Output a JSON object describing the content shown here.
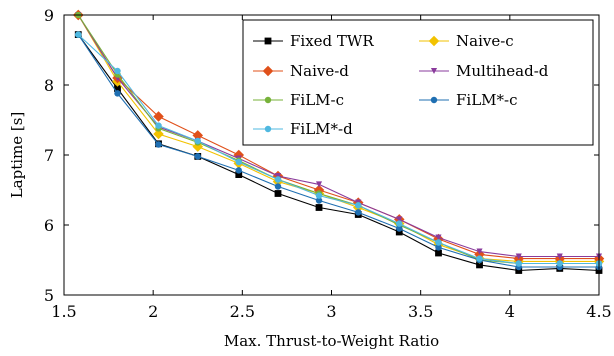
{
  "chart_data": {
    "type": "line",
    "title": "",
    "xlabel": "Max. Thrust-to-Weight Ratio",
    "ylabel": "Laptime [s]",
    "xlim": [
      1.5,
      4.5
    ],
    "ylim": [
      5,
      9
    ],
    "xticks": [
      1.5,
      2,
      2.5,
      3,
      3.5,
      4,
      4.5
    ],
    "xtick_labels": [
      "1.5",
      "2",
      "2.5",
      "3",
      "3.5",
      "4",
      "4.5"
    ],
    "yticks": [
      5,
      6,
      7,
      8,
      9
    ],
    "ytick_labels": [
      "5",
      "6",
      "7",
      "8",
      "9"
    ],
    "grid": false,
    "legend_position": "top-right",
    "x": [
      1.58,
      1.8,
      2.03,
      2.25,
      2.48,
      2.7,
      2.93,
      3.15,
      3.38,
      3.6,
      3.83,
      4.05,
      4.28,
      4.5
    ],
    "series": [
      {
        "name": "Fixed TWR",
        "color": "#000000",
        "marker": "square",
        "values": [
          8.72,
          7.95,
          7.16,
          6.98,
          6.72,
          6.45,
          6.25,
          6.15,
          5.9,
          5.6,
          5.43,
          5.35,
          5.38,
          5.35
        ]
      },
      {
        "name": "Naive-c",
        "color": "#f2c200",
        "marker": "diamond",
        "values": [
          9.0,
          8.05,
          7.3,
          7.12,
          6.88,
          6.62,
          6.45,
          6.25,
          6.02,
          5.72,
          5.52,
          5.48,
          5.48,
          5.48
        ]
      },
      {
        "name": "Naive-d",
        "color": "#e0501a",
        "marker": "diamond",
        "values": [
          9.0,
          8.1,
          7.55,
          7.28,
          7.0,
          6.7,
          6.5,
          6.32,
          6.08,
          5.8,
          5.58,
          5.52,
          5.52,
          5.52
        ]
      },
      {
        "name": "Multihead-d",
        "color": "#8a3b9c",
        "marker": "triangle",
        "values": [
          9.0,
          8.1,
          7.4,
          7.2,
          6.95,
          6.7,
          6.58,
          6.32,
          6.08,
          5.82,
          5.62,
          5.55,
          5.55,
          5.55
        ]
      },
      {
        "name": "FiLM-c",
        "color": "#77b23a",
        "marker": "circle",
        "values": [
          9.0,
          8.15,
          7.38,
          7.18,
          6.92,
          6.65,
          6.45,
          6.28,
          6.0,
          5.75,
          5.5,
          5.45,
          5.45,
          5.45
        ]
      },
      {
        "name": "FiLM*-c",
        "color": "#1f6fb2",
        "marker": "circle",
        "values": [
          8.72,
          7.88,
          7.15,
          6.98,
          6.78,
          6.55,
          6.35,
          6.18,
          5.95,
          5.68,
          5.5,
          5.4,
          5.4,
          5.4
        ]
      },
      {
        "name": "FiLM*-d",
        "color": "#4fb8e0",
        "marker": "circle",
        "values": [
          8.72,
          8.2,
          7.42,
          7.2,
          6.9,
          6.65,
          6.42,
          6.28,
          6.02,
          5.75,
          5.52,
          5.45,
          5.45,
          5.45
        ]
      }
    ]
  }
}
